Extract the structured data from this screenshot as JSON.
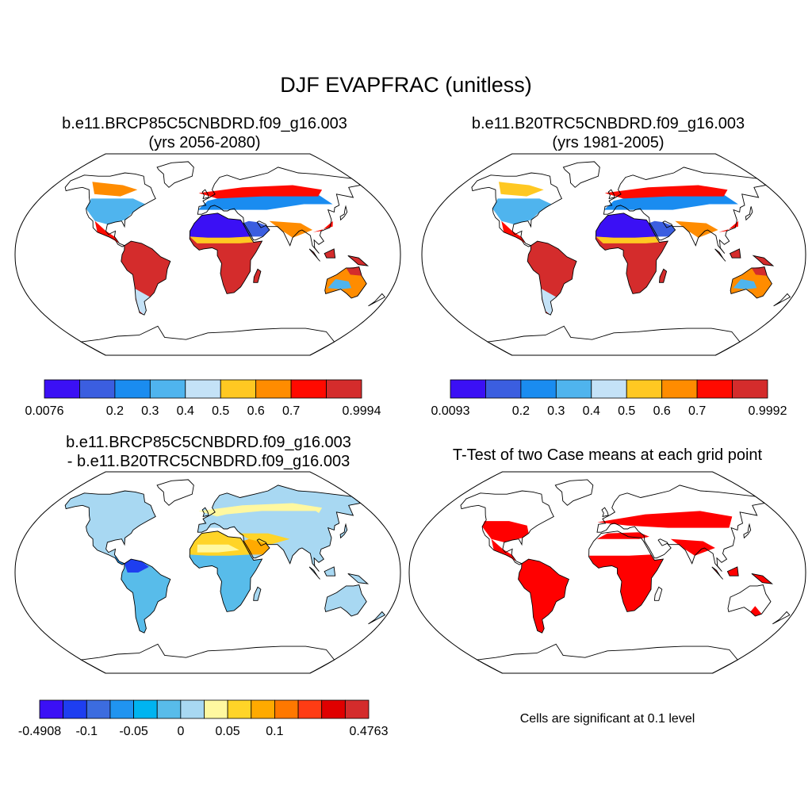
{
  "title": "DJF EVAPFRAC (unitless)",
  "panels": [
    {
      "id": "p1",
      "title_line1": "b.e11.BRCP85C5CNBDRD.f09_g16.003",
      "title_line2": "(yrs 2056-2080)",
      "colorbar": {
        "colors": [
          "#3b10f5",
          "#3b5ee0",
          "#1a8cf0",
          "#4fb4ee",
          "#c4e2f7",
          "#ffc822",
          "#ff8c00",
          "#ff0a00",
          "#d42c2c"
        ],
        "labels": [
          "0.0076",
          "0.2",
          "0.3",
          "0.4",
          "0.5",
          "0.6",
          "0.7",
          "0.9994"
        ]
      }
    },
    {
      "id": "p2",
      "title_line1": "b.e11.B20TRC5CNBDRD.f09_g16.003",
      "title_line2": "(yrs 1981-2005)",
      "colorbar": {
        "colors": [
          "#3b10f5",
          "#3b5ee0",
          "#1a8cf0",
          "#4fb4ee",
          "#c4e2f7",
          "#ffc822",
          "#ff8c00",
          "#ff0a00",
          "#d42c2c"
        ],
        "labels": [
          "0.0093",
          "0.2",
          "0.3",
          "0.4",
          "0.5",
          "0.6",
          "0.7",
          "0.9992"
        ]
      }
    },
    {
      "id": "p3",
      "title_line1": "b.e11.BRCP85C5CNBDRD.f09_g16.003",
      "title_line2": "- b.e11.B20TRC5CNBDRD.f09_g16.003",
      "colorbar": {
        "colors": [
          "#3b10f5",
          "#1e3ef0",
          "#3c6cdf",
          "#2094f0",
          "#00b4f0",
          "#58bcea",
          "#a8d8f2",
          "#fff8a0",
          "#ffd428",
          "#ffaa00",
          "#ff7800",
          "#ff3c14",
          "#e00000",
          "#d42c2c"
        ],
        "labels": [
          "-0.4908",
          "-0.1",
          "-0.05",
          "0",
          "0.05",
          "0.1",
          "0.4763"
        ]
      }
    },
    {
      "id": "p4",
      "title_line1": "T-Test of two Case means at each grid point",
      "note": "Cells are significant at 0.1 level",
      "significant_color": "#ff0000"
    }
  ]
}
